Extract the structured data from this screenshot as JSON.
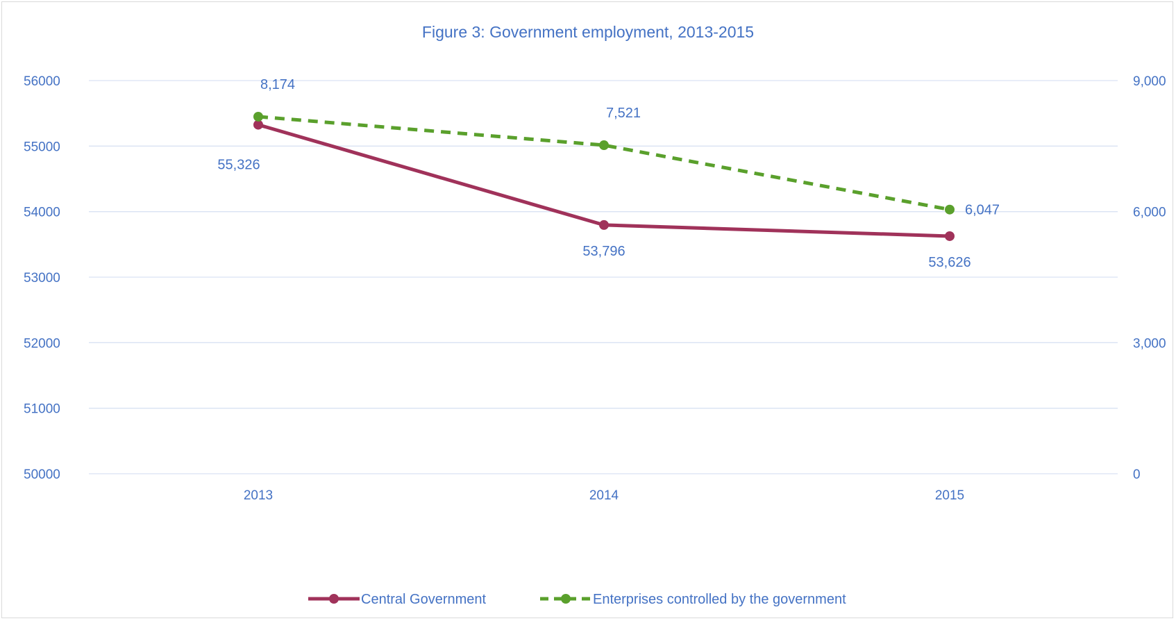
{
  "chart_data": {
    "type": "line",
    "title": "Figure 3: Government employment, 2013-2015",
    "categories": [
      "2013",
      "2014",
      "2015"
    ],
    "y_left": {
      "min": 50000,
      "max": 56000,
      "ticks": [
        "50000",
        "51000",
        "52000",
        "53000",
        "54000",
        "55000",
        "56000"
      ]
    },
    "y_right": {
      "min": 0,
      "max": 9000,
      "ticks": [
        "0",
        "3,000",
        "6,000",
        "9,000"
      ]
    },
    "grid": true,
    "legend_position": "bottom",
    "series": [
      {
        "name": "Central Government",
        "axis": "left",
        "values": [
          55326,
          53796,
          53626
        ],
        "labels": [
          "55,326",
          "53,796",
          "53,626"
        ],
        "color": "#a0325a",
        "style": "solid"
      },
      {
        "name": "Enterprises controlled by the government",
        "axis": "right",
        "values": [
          8174,
          7521,
          6047
        ],
        "labels": [
          "8,174",
          "7,521",
          "6,047"
        ],
        "color": "#5aa02c",
        "style": "dashed"
      }
    ]
  }
}
